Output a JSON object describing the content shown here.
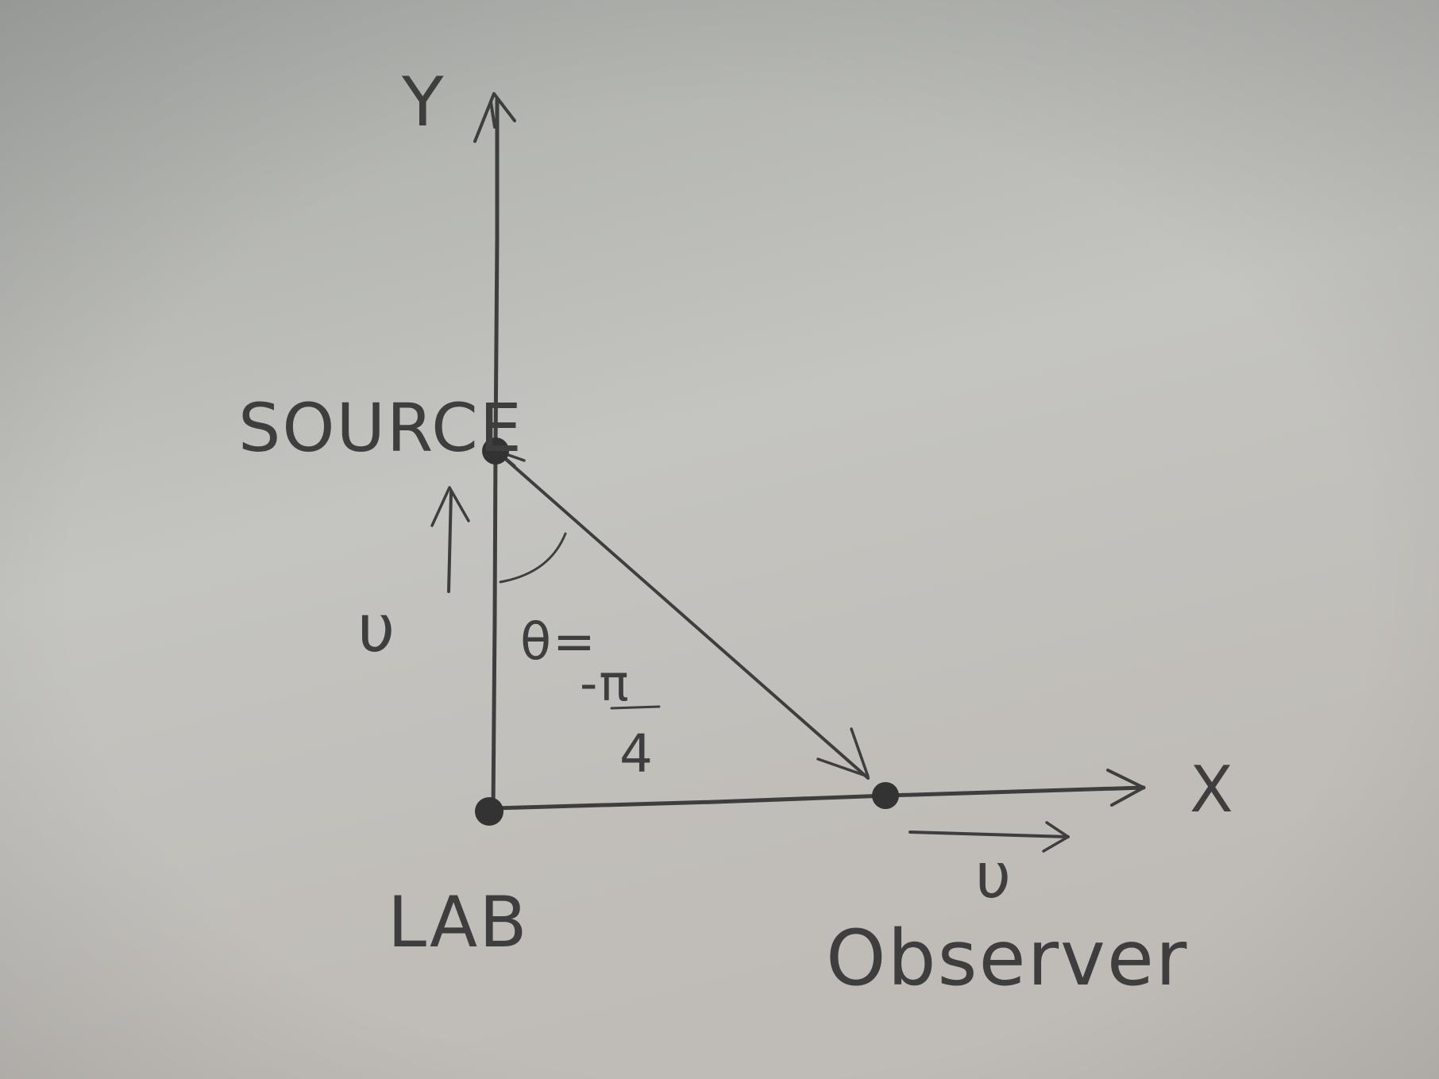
{
  "labels": {
    "y_axis": "Y",
    "x_axis": "X",
    "source": "SOURCE",
    "lab": "LAB",
    "observer": "Observer",
    "source_velocity": "υ",
    "observer_velocity": "υ",
    "angle_symbol": "θ=",
    "angle_numerator": "-π",
    "angle_denominator": "4"
  },
  "colors": {
    "paper_top": "#a9aca8",
    "paper_mid": "#c4c4c0",
    "paper_bottom": "#bfbbb6",
    "pencil": "#3e3e3e",
    "point": "#333333"
  }
}
